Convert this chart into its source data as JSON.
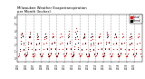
{
  "title": "Milwaukee Weather Evapotranspiration\nper Month (Inches)",
  "title_fontsize": 2.8,
  "years": [
    2005,
    2006,
    2007,
    2008,
    2009,
    2010,
    2011,
    2012,
    2013,
    2014,
    2015,
    2016,
    2017,
    2018,
    2019,
    2020
  ],
  "months_per_year": 12,
  "background_color": "#ffffff",
  "grid_color": "#aaaaaa",
  "dot_color_actual": "#ff0000",
  "dot_color_normal": "#000000",
  "ylim": [
    -0.5,
    6.5
  ],
  "legend_actual_label": "Actual",
  "legend_normal_label": "Normal",
  "monthly_normals": [
    0.35,
    0.42,
    0.75,
    1.35,
    2.2,
    3.1,
    3.6,
    3.2,
    2.25,
    1.4,
    0.65,
    0.32
  ],
  "yearly_data": {
    "2005": [
      0.3,
      0.4,
      0.7,
      1.1,
      2.5,
      3.5,
      3.8,
      3.4,
      2.0,
      1.2,
      0.55,
      0.28
    ],
    "2006": [
      0.38,
      0.5,
      0.9,
      1.6,
      2.4,
      3.3,
      3.9,
      3.1,
      2.1,
      1.3,
      0.6,
      0.25
    ],
    "2007": [
      0.32,
      0.38,
      0.65,
      1.2,
      2.0,
      2.9,
      3.4,
      2.9,
      2.2,
      1.35,
      0.58,
      0.3
    ],
    "2008": [
      0.28,
      0.35,
      0.72,
      1.3,
      2.1,
      2.8,
      3.2,
      3.0,
      2.3,
      1.45,
      0.62,
      0.35
    ],
    "2009": [
      0.4,
      0.45,
      0.8,
      1.5,
      2.3,
      3.2,
      3.7,
      3.3,
      2.4,
      1.5,
      0.7,
      0.38
    ],
    "2010": [
      0.33,
      0.42,
      0.78,
      1.4,
      2.2,
      3.1,
      3.6,
      3.2,
      2.25,
      1.4,
      0.65,
      0.32
    ],
    "2011": [
      0.36,
      0.44,
      0.76,
      1.45,
      2.35,
      3.4,
      4.0,
      3.6,
      2.5,
      1.55,
      0.68,
      0.34
    ],
    "2012": [
      0.42,
      0.55,
      0.95,
      1.7,
      2.8,
      3.9,
      4.5,
      4.0,
      2.8,
      1.6,
      0.72,
      0.36
    ],
    "2013": [
      0.3,
      0.38,
      0.7,
      1.25,
      2.1,
      3.0,
      3.5,
      3.1,
      2.2,
      1.35,
      0.6,
      0.3
    ],
    "2014": [
      0.25,
      0.32,
      0.6,
      1.1,
      1.9,
      2.7,
      3.2,
      2.8,
      2.0,
      1.2,
      0.52,
      0.28
    ],
    "2015": [
      0.35,
      0.45,
      0.8,
      1.4,
      2.3,
      3.2,
      3.7,
      3.3,
      2.35,
      1.45,
      0.65,
      0.33
    ],
    "2016": [
      0.38,
      0.48,
      0.85,
      1.5,
      2.4,
      3.4,
      3.9,
      3.5,
      2.45,
      1.5,
      0.68,
      0.35
    ],
    "2017": [
      0.32,
      0.4,
      0.72,
      1.3,
      2.15,
      3.05,
      3.55,
      3.15,
      2.2,
      1.38,
      0.62,
      0.31
    ],
    "2018": [
      0.36,
      0.46,
      0.82,
      1.45,
      2.25,
      3.15,
      3.65,
      3.25,
      2.3,
      1.42,
      0.65,
      0.33
    ],
    "2019": [
      0.3,
      0.38,
      0.68,
      1.2,
      2.0,
      2.85,
      3.3,
      2.95,
      2.1,
      1.3,
      0.58,
      0.29
    ],
    "2020": [
      0.34,
      0.43,
      0.77,
      1.38,
      2.22,
      3.12,
      3.62,
      3.22,
      2.27,
      1.42,
      0.66,
      0.32
    ]
  },
  "figsize": [
    1.6,
    0.87
  ],
  "dpi": 100
}
